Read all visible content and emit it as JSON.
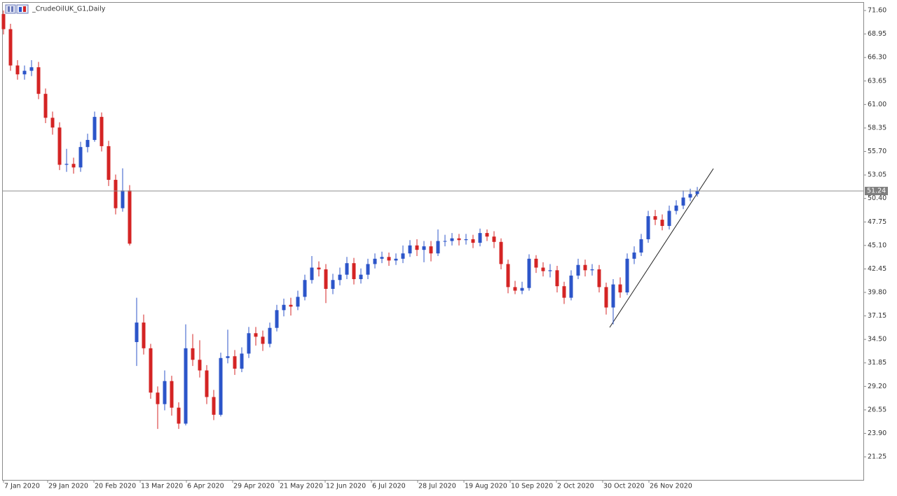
{
  "chart_data": {
    "type": "candlestick",
    "title": "_CrudeOilUK_G1,Daily",
    "up_color": "#2c55c9",
    "down_color": "#d42424",
    "last_price": 51.24,
    "xlim": [
      -0.2,
      122.7
    ],
    "ylim": [
      18.65,
      72.55
    ],
    "xticks": [
      {
        "value": 0,
        "label": "7 Jan 2020"
      },
      {
        "value": 6.3,
        "label": "29 Jan 2020"
      },
      {
        "value": 12.9,
        "label": "20 Feb 2020"
      },
      {
        "value": 19.5,
        "label": "13 Mar 2020"
      },
      {
        "value": 26.1,
        "label": "6 Apr 2020"
      },
      {
        "value": 32.7,
        "label": "29 Apr 2020"
      },
      {
        "value": 39.3,
        "label": "21 May 2020"
      },
      {
        "value": 45.9,
        "label": "12 Jun 2020"
      },
      {
        "value": 52.5,
        "label": "6 Jul 2020"
      },
      {
        "value": 59.1,
        "label": "28 Jul 2020"
      },
      {
        "value": 65.7,
        "label": "19 Aug 2020"
      },
      {
        "value": 72.3,
        "label": "10 Sep 2020"
      },
      {
        "value": 78.9,
        "label": "2 Oct 2020"
      },
      {
        "value": 85.5,
        "label": "30 Oct 2020"
      },
      {
        "value": 92.1,
        "label": "26 Nov 2020"
      }
    ],
    "yticks": [
      {
        "value": 71.6,
        "label": "71.60"
      },
      {
        "value": 68.95,
        "label": "68.95"
      },
      {
        "value": 66.3,
        "label": "66.30"
      },
      {
        "value": 63.65,
        "label": "63.65"
      },
      {
        "value": 61,
        "label": "61.00"
      },
      {
        "value": 58.35,
        "label": "58.35"
      },
      {
        "value": 55.7,
        "label": "55.70"
      },
      {
        "value": 53.05,
        "label": "53.05"
      },
      {
        "value": 50.4,
        "label": "50.40"
      },
      {
        "value": 47.75,
        "label": "47.75"
      },
      {
        "value": 45.1,
        "label": "45.10"
      },
      {
        "value": 42.45,
        "label": "42.45"
      },
      {
        "value": 39.8,
        "label": "39.80"
      },
      {
        "value": 37.15,
        "label": "37.15"
      },
      {
        "value": 34.5,
        "label": "34.50"
      },
      {
        "value": 31.85,
        "label": "31.85"
      },
      {
        "value": 29.2,
        "label": "29.20"
      },
      {
        "value": 26.55,
        "label": "26.55"
      },
      {
        "value": 23.9,
        "label": "23.90"
      },
      {
        "value": 21.25,
        "label": "21.25"
      }
    ],
    "open": [
      71.2,
      69.5,
      65.4,
      64.4,
      64.8,
      65.2,
      62.2,
      59.5,
      58.4,
      54.2,
      54.3,
      53.9,
      56.2,
      57,
      59.6,
      56.3,
      52.5,
      49.3,
      51.3,
      34.2,
      36.4,
      33.5,
      28.5,
      27.2,
      29.8,
      26.8,
      25,
      33.5,
      32.2,
      31,
      28,
      26,
      32.4,
      32.6,
      31.2,
      32.9,
      35.2,
      34.8,
      34,
      35.8,
      37.8,
      38.4,
      38.2,
      39.3,
      41.2,
      42.6,
      42.4,
      40.2,
      41.2,
      41.8,
      43.1,
      41.3,
      41.8,
      43,
      43.6,
      43.8,
      43.4,
      43.6,
      44.2,
      45.1,
      44.6,
      45,
      44.2,
      45.6,
      45.6,
      45.9,
      45.7,
      45.8,
      45.4,
      46.5,
      46.1,
      45.5,
      43,
      40.4,
      40,
      40.3,
      43.6,
      42.6,
      42.2,
      42.3,
      40.5,
      39.2,
      41.7,
      42.9,
      42.3,
      42.4,
      40.4,
      38.1,
      40.7,
      39.8,
      43.6,
      44.3,
      45.8,
      48.4,
      48,
      47.3,
      49,
      49.6,
      50.5,
      50.9
    ],
    "high": [
      71.6,
      70.1,
      66,
      65.4,
      66,
      65.8,
      62.8,
      60.2,
      59,
      56,
      55,
      56.8,
      57.7,
      60.2,
      60.1,
      56.9,
      53.1,
      53.8,
      51.9,
      39.2,
      37.3,
      34,
      29.2,
      31,
      30.4,
      27.4,
      36.2,
      35.1,
      34.4,
      31.6,
      28.8,
      33,
      35.6,
      33.3,
      33.6,
      35.9,
      35.9,
      35.5,
      36.4,
      38.4,
      39.1,
      39.2,
      40,
      41.8,
      43.9,
      43.3,
      43,
      41.9,
      42.6,
      43.8,
      43.7,
      42.5,
      43.6,
      44.2,
      44.4,
      44.3,
      44.2,
      45.1,
      45.7,
      45.8,
      45.6,
      45.6,
      46.9,
      46.3,
      46.5,
      46.4,
      46.4,
      46.3,
      47,
      46.9,
      46.7,
      45.9,
      43.5,
      41.1,
      41,
      44.1,
      44,
      43.2,
      43,
      42.8,
      41,
      42.3,
      43.6,
      43.5,
      43,
      42.9,
      40.9,
      41.3,
      41.5,
      44.2,
      45,
      46.4,
      49,
      49.1,
      48.6,
      49.6,
      50.2,
      51.3,
      51.5,
      51.7
    ],
    "low": [
      68.9,
      64.8,
      63.8,
      63.8,
      64.2,
      61.6,
      58.9,
      57.6,
      53.6,
      53.4,
      53.2,
      53.4,
      55.6,
      56.8,
      55.7,
      51.8,
      48.6,
      48.9,
      45.1,
      31.5,
      32.8,
      27.8,
      24.4,
      26.5,
      25.9,
      24.4,
      24.8,
      31.5,
      30.2,
      27.2,
      25.4,
      25.8,
      31.8,
      30.5,
      30.8,
      32.4,
      33.8,
      33.2,
      33.6,
      35.4,
      37.1,
      37.2,
      37.8,
      38.9,
      40.8,
      41.6,
      38.6,
      39.6,
      40.6,
      41.3,
      40.7,
      40.8,
      41.3,
      42.5,
      43.1,
      42.8,
      42.9,
      43.1,
      43.8,
      43.9,
      43.2,
      43.3,
      43.9,
      45,
      45.1,
      45.1,
      45.2,
      44.8,
      45,
      45.6,
      44.8,
      42.4,
      39.7,
      39.6,
      39.6,
      40,
      42,
      41.6,
      41.5,
      39.8,
      38.5,
      38.9,
      41.3,
      41.6,
      41.7,
      39.8,
      37.3,
      36.2,
      39.2,
      39.5,
      43,
      43.9,
      45.4,
      47.4,
      46.8,
      46.9,
      48.6,
      49.2,
      50.1,
      50.6
    ],
    "close": [
      69.5,
      65.4,
      64.4,
      64.8,
      65.2,
      62.2,
      59.5,
      58.4,
      54.2,
      54.3,
      53.9,
      56.2,
      57,
      59.6,
      56.3,
      52.5,
      49.3,
      51.3,
      45.3,
      36.4,
      33.5,
      28.5,
      27.2,
      29.8,
      26.8,
      25,
      33.5,
      32.2,
      31,
      28,
      26,
      32.4,
      32.6,
      31.2,
      32.9,
      35.2,
      34.8,
      34,
      35.8,
      37.8,
      38.4,
      38.2,
      39.3,
      41.2,
      42.6,
      42.4,
      40.2,
      41.2,
      41.8,
      43.1,
      41.3,
      41.8,
      43,
      43.6,
      43.8,
      43.4,
      43.6,
      44.2,
      45.1,
      44.6,
      45,
      44.2,
      45.6,
      45.6,
      45.9,
      45.7,
      45.8,
      45.4,
      46.5,
      46.1,
      45.5,
      43,
      40.4,
      40,
      40.3,
      43.6,
      42.6,
      42.2,
      42.3,
      40.5,
      39.2,
      41.7,
      42.9,
      42.3,
      42.4,
      40.4,
      38.1,
      40.7,
      39.8,
      43.6,
      44.3,
      45.8,
      48.4,
      48,
      47.3,
      49,
      49.6,
      50.5,
      50.9,
      51.24
    ]
  }
}
